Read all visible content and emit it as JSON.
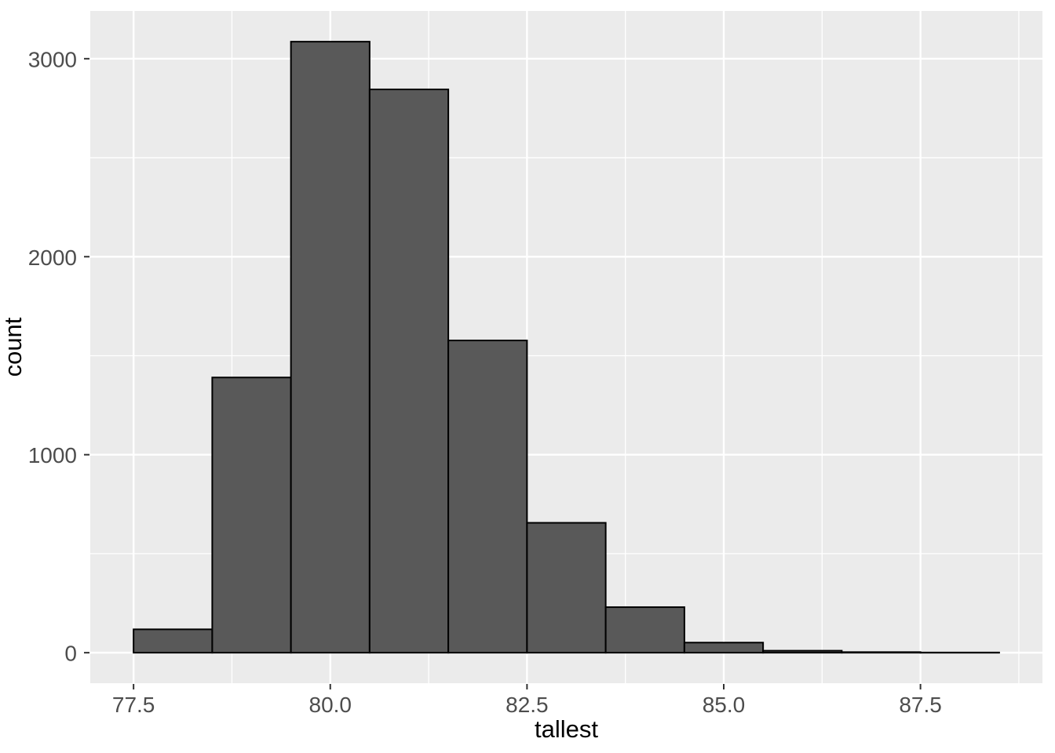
{
  "figure": {
    "kind": "ggplot-histogram"
  },
  "chart_data": {
    "type": "bar",
    "subtype": "histogram",
    "title": "",
    "xlabel": "tallest",
    "ylabel": "count",
    "bin_width": 1.0,
    "bin_edges": [
      77.5,
      78.5,
      79.5,
      80.5,
      81.5,
      82.5,
      83.5,
      84.5,
      85.5,
      86.5,
      87.5,
      88.5
    ],
    "counts": [
      118,
      1390,
      3086,
      2845,
      1577,
      656,
      230,
      51,
      10,
      3,
      1
    ],
    "x_ticks": {
      "values": [
        77.5,
        80.0,
        82.5,
        85.0,
        87.5
      ],
      "labels": [
        "77.5",
        "80.0",
        "82.5",
        "85.0",
        "87.5"
      ]
    },
    "y_ticks": {
      "values": [
        0,
        1000,
        2000,
        3000
      ],
      "labels": [
        "0",
        "1000",
        "2000",
        "3000"
      ]
    },
    "x_minor_ticks": [
      78.75,
      81.25,
      83.75,
      86.25,
      88.75
    ],
    "y_minor_ticks": [
      500,
      1500,
      2500
    ],
    "xlim": [
      76.95,
      89.05
    ],
    "ylim": [
      -154,
      3241
    ],
    "grid": "major+minor",
    "legend_position": "none",
    "style": {
      "page_bg": "#FFFFFF",
      "panel_bg": "#EBEBEB",
      "grid_color": "#FFFFFF",
      "bar_fill": "#595959",
      "bar_stroke": "#000000",
      "tick_mark_color": "#333333",
      "tick_label_color": "#4D4D4D",
      "axis_title_color": "#000000"
    }
  }
}
